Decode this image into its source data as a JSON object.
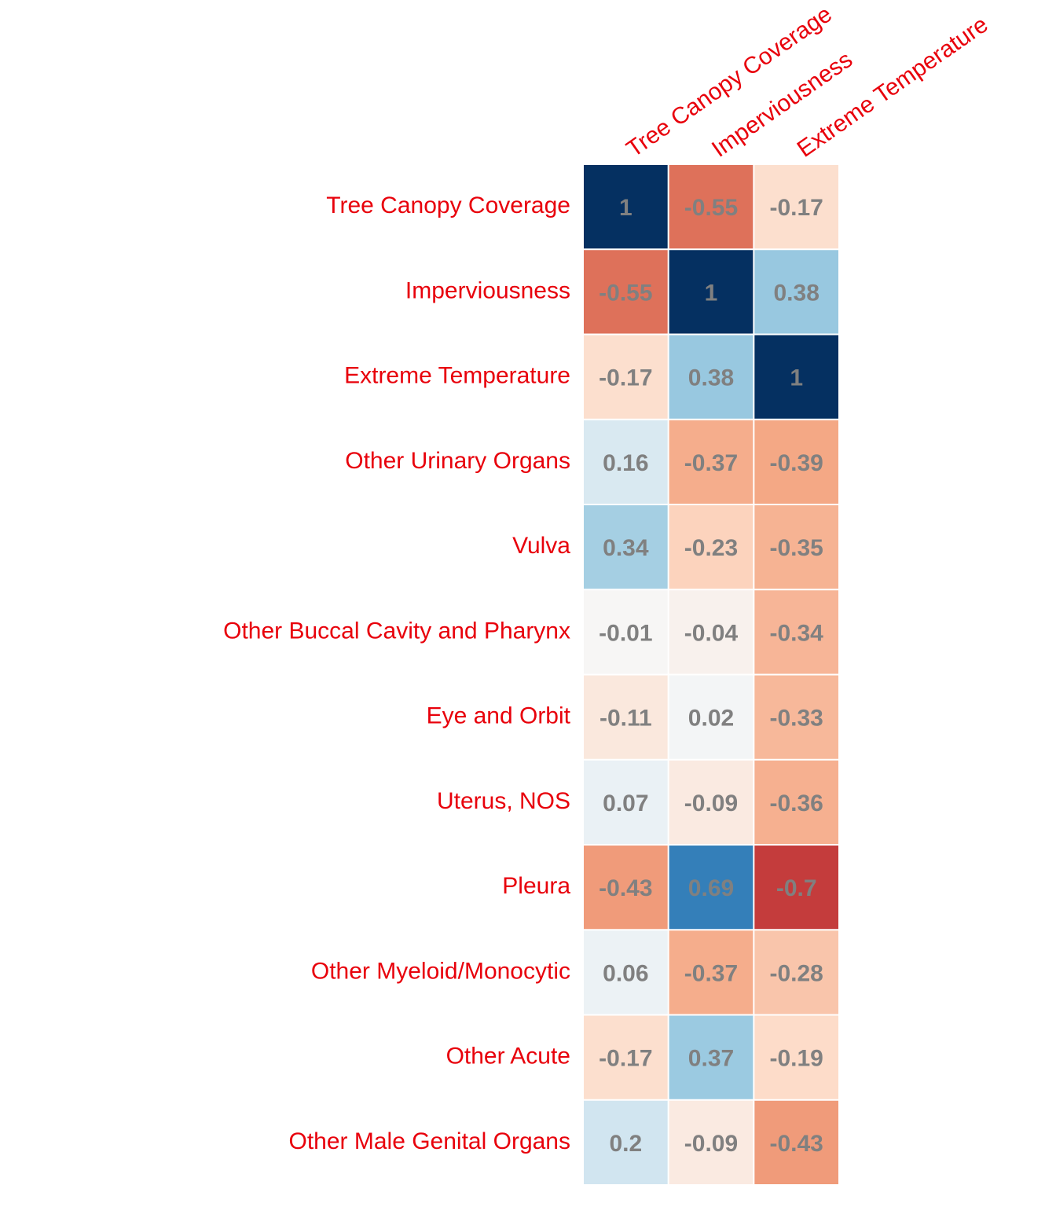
{
  "chart_data": {
    "type": "heatmap",
    "columns": [
      "Tree Canopy Coverage",
      "Imperviousness",
      "Extreme Temperature"
    ],
    "rows": [
      "Tree Canopy Coverage",
      "Imperviousness",
      "Extreme Temperature",
      "Other Urinary Organs",
      "Vulva",
      "Other Buccal Cavity and Pharynx",
      "Eye and Orbit",
      "Uterus, NOS",
      "Pleura",
      "Other Myeloid/Monocytic",
      "Other Acute",
      "Other Male Genital Organs"
    ],
    "values": [
      [
        1,
        -0.55,
        -0.17
      ],
      [
        -0.55,
        1,
        0.38
      ],
      [
        -0.17,
        0.38,
        1
      ],
      [
        0.16,
        -0.37,
        -0.39
      ],
      [
        0.34,
        -0.23,
        -0.35
      ],
      [
        -0.01,
        -0.04,
        -0.34
      ],
      [
        -0.11,
        0.02,
        -0.33
      ],
      [
        0.07,
        -0.09,
        -0.36
      ],
      [
        -0.43,
        0.69,
        -0.7
      ],
      [
        0.06,
        -0.37,
        -0.28
      ],
      [
        -0.17,
        0.37,
        -0.19
      ],
      [
        0.2,
        -0.09,
        -0.43
      ]
    ],
    "value_labels": [
      [
        "1",
        "-0.55",
        "-0.17"
      ],
      [
        "-0.55",
        "1",
        "0.38"
      ],
      [
        "-0.17",
        "0.38",
        "1"
      ],
      [
        "0.16",
        "-0.37",
        "-0.39"
      ],
      [
        "0.34",
        "-0.23",
        "-0.35"
      ],
      [
        "-0.01",
        "-0.04",
        "-0.34"
      ],
      [
        "-0.11",
        "0.02",
        "-0.33"
      ],
      [
        "0.07",
        "-0.09",
        "-0.36"
      ],
      [
        "-0.43",
        "0.69",
        "-0.7"
      ],
      [
        "0.06",
        "-0.37",
        "-0.28"
      ],
      [
        "-0.17",
        "0.37",
        "-0.19"
      ],
      [
        "0.2",
        "-0.09",
        "-0.43"
      ]
    ],
    "color_scale": "RdBu",
    "value_range": [
      -1,
      1
    ],
    "label_color": "#e8000b",
    "annotation_color": "#808080",
    "grid_color": "#ffffff"
  }
}
